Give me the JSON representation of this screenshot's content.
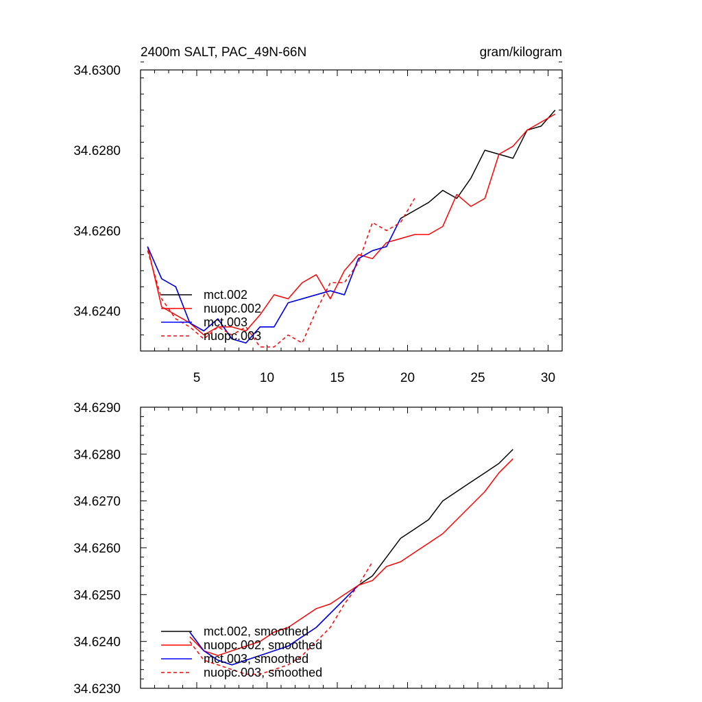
{
  "chart_data": [
    {
      "type": "line",
      "title_left": "2400m SALT, PAC_49N-66N",
      "title_right": "gram/kilogram",
      "xlabel": "",
      "ylabel": "",
      "xlim": [
        1,
        31
      ],
      "ylim": [
        34.623,
        34.63
      ],
      "xticks": [
        5,
        10,
        15,
        20,
        25,
        30
      ],
      "xtick_labels": [
        "5",
        "10",
        "15",
        "20",
        "25",
        "30"
      ],
      "yticks": [
        34.624,
        34.626,
        34.628,
        34.63
      ],
      "ytick_labels": [
        "34.6240",
        "34.6260",
        "34.6280",
        "34.6300"
      ],
      "legend_position": "lower-left",
      "series": [
        {
          "name": "mct.002",
          "color": "#000000",
          "dash": "solid",
          "x": [
            1.5,
            2.5,
            3.5,
            4.5,
            5.5,
            6.5,
            7.5,
            8.5,
            9.5,
            10.5,
            11.5,
            12.5,
            13.5,
            14.5,
            15.5,
            16.5,
            17.5,
            18.5,
            19.5,
            20.5,
            21.5,
            22.5,
            23.5,
            24.5,
            25.5,
            26.5,
            27.5,
            28.5,
            29.5,
            30.5
          ],
          "y": [
            34.6256,
            34.6248,
            34.6246,
            34.6237,
            34.6235,
            34.6238,
            34.6233,
            34.6232,
            34.6236,
            34.6236,
            34.6242,
            34.6243,
            34.6244,
            34.6245,
            34.6244,
            34.6253,
            34.6255,
            34.6256,
            34.6263,
            34.6265,
            34.6267,
            34.627,
            34.6268,
            34.6273,
            34.628,
            34.6279,
            34.6278,
            34.6285,
            34.6286,
            34.629
          ]
        },
        {
          "name": "nuopc.002",
          "color": "#ff0000",
          "dash": "solid",
          "x": [
            1.5,
            2.5,
            3.5,
            4.5,
            5.5,
            6.5,
            7.5,
            8.5,
            9.5,
            10.5,
            11.5,
            12.5,
            13.5,
            14.5,
            15.5,
            16.5,
            17.5,
            18.5,
            19.5,
            20.5,
            21.5,
            22.5,
            23.5,
            24.5,
            25.5,
            26.5,
            27.5,
            28.5,
            29.5,
            30.5
          ],
          "y": [
            34.6256,
            34.6241,
            34.6239,
            34.6237,
            34.6234,
            34.6236,
            34.6236,
            34.6235,
            34.6239,
            34.6244,
            34.6243,
            34.6247,
            34.6249,
            34.6243,
            34.625,
            34.6254,
            34.6253,
            34.6257,
            34.6258,
            34.6259,
            34.6259,
            34.6261,
            34.6269,
            34.6266,
            34.6268,
            34.6279,
            34.6281,
            34.6285,
            34.6287,
            34.6289
          ]
        },
        {
          "name": "mct.003",
          "color": "#0000ff",
          "dash": "solid",
          "x": [
            1.5,
            2.5,
            3.5,
            4.5,
            5.5,
            6.5,
            7.5,
            8.5,
            9.5,
            10.5,
            11.5,
            12.5,
            13.5,
            14.5,
            15.5,
            16.5,
            17.5,
            18.5,
            19.5
          ],
          "y": [
            34.6256,
            34.6248,
            34.6246,
            34.6237,
            34.6235,
            34.6238,
            34.6233,
            34.6232,
            34.6236,
            34.6236,
            34.6242,
            34.6243,
            34.6244,
            34.6245,
            34.6244,
            34.6253,
            34.6255,
            34.6256,
            34.6263
          ]
        },
        {
          "name": "nuopc.003",
          "color": "#ff0000",
          "dash": "dashed",
          "x": [
            1.5,
            2.5,
            3.5,
            4.5,
            5.5,
            6.5,
            7.5,
            8.5,
            9.5,
            10.5,
            11.5,
            12.5,
            13.5,
            14.5,
            15.5,
            16.5,
            17.5,
            18.5,
            19.5,
            20.5
          ],
          "y": [
            34.6255,
            34.6243,
            34.6238,
            34.6236,
            34.6233,
            34.6236,
            34.6234,
            34.6236,
            34.6231,
            34.6231,
            34.6234,
            34.6232,
            34.624,
            34.6247,
            34.6247,
            34.6252,
            34.6262,
            34.626,
            34.6262,
            34.6268
          ]
        }
      ]
    },
    {
      "type": "line",
      "xlabel": "",
      "ylabel": "",
      "xlim": [
        1,
        31
      ],
      "ylim": [
        34.623,
        34.629
      ],
      "xticks": [
        5,
        10,
        15,
        20,
        25,
        30
      ],
      "yticks": [
        34.623,
        34.624,
        34.625,
        34.626,
        34.627,
        34.628,
        34.629
      ],
      "ytick_labels": [
        "34.6230",
        "34.6240",
        "34.6250",
        "34.6260",
        "34.6270",
        "34.6280",
        "34.6290"
      ],
      "legend_position": "lower-left",
      "series": [
        {
          "name": "mct.002, smoothed",
          "color": "#000000",
          "dash": "solid",
          "x": [
            4.5,
            5.5,
            6.5,
            7.5,
            8.5,
            9.5,
            10.5,
            11.5,
            12.5,
            13.5,
            14.5,
            15.5,
            16.5,
            17.5,
            18.5,
            19.5,
            20.5,
            21.5,
            22.5,
            23.5,
            24.5,
            25.5,
            26.5,
            27.5
          ],
          "y": [
            34.6242,
            34.6238,
            34.6236,
            34.6235,
            34.6236,
            34.6237,
            34.6238,
            34.6239,
            34.6241,
            34.6243,
            34.6246,
            34.6249,
            34.6252,
            34.6254,
            34.6258,
            34.6262,
            34.6264,
            34.6266,
            34.627,
            34.6272,
            34.6274,
            34.6276,
            34.6278,
            34.6281
          ]
        },
        {
          "name": "nuopc.002, smoothed",
          "color": "#ff0000",
          "dash": "solid",
          "x": [
            4.5,
            5.5,
            6.5,
            7.5,
            8.5,
            9.5,
            10.5,
            11.5,
            12.5,
            13.5,
            14.5,
            15.5,
            16.5,
            17.5,
            18.5,
            19.5,
            20.5,
            21.5,
            22.5,
            23.5,
            24.5,
            25.5,
            26.5,
            27.5
          ],
          "y": [
            34.6241,
            34.6238,
            34.6237,
            34.6238,
            34.6239,
            34.624,
            34.6242,
            34.6243,
            34.6245,
            34.6247,
            34.6248,
            34.625,
            34.6252,
            34.6253,
            34.6256,
            34.6257,
            34.6259,
            34.6261,
            34.6263,
            34.6266,
            34.6269,
            34.6272,
            34.6276,
            34.6279
          ]
        },
        {
          "name": "mct.003, smoothed",
          "color": "#0000ff",
          "dash": "solid",
          "x": [
            4.5,
            5.5,
            6.5,
            7.5,
            8.5,
            9.5,
            10.5,
            11.5,
            12.5,
            13.5,
            14.5,
            15.5,
            16.5
          ],
          "y": [
            34.6242,
            34.6238,
            34.6236,
            34.6235,
            34.6236,
            34.6237,
            34.6238,
            34.6239,
            34.6241,
            34.6243,
            34.6246,
            34.6249,
            34.6252
          ]
        },
        {
          "name": "nuopc.003, smoothed",
          "color": "#ff0000",
          "dash": "dashed",
          "x": [
            4.5,
            5.5,
            6.5,
            7.5,
            8.5,
            9.5,
            10.5,
            11.5,
            12.5,
            13.5,
            14.5,
            15.5,
            16.5,
            17.5
          ],
          "y": [
            34.624,
            34.6236,
            34.6235,
            34.6234,
            34.6233,
            34.6233,
            34.6234,
            34.6235,
            34.6237,
            34.624,
            34.6243,
            34.6248,
            34.6252,
            34.6257
          ]
        }
      ]
    }
  ]
}
